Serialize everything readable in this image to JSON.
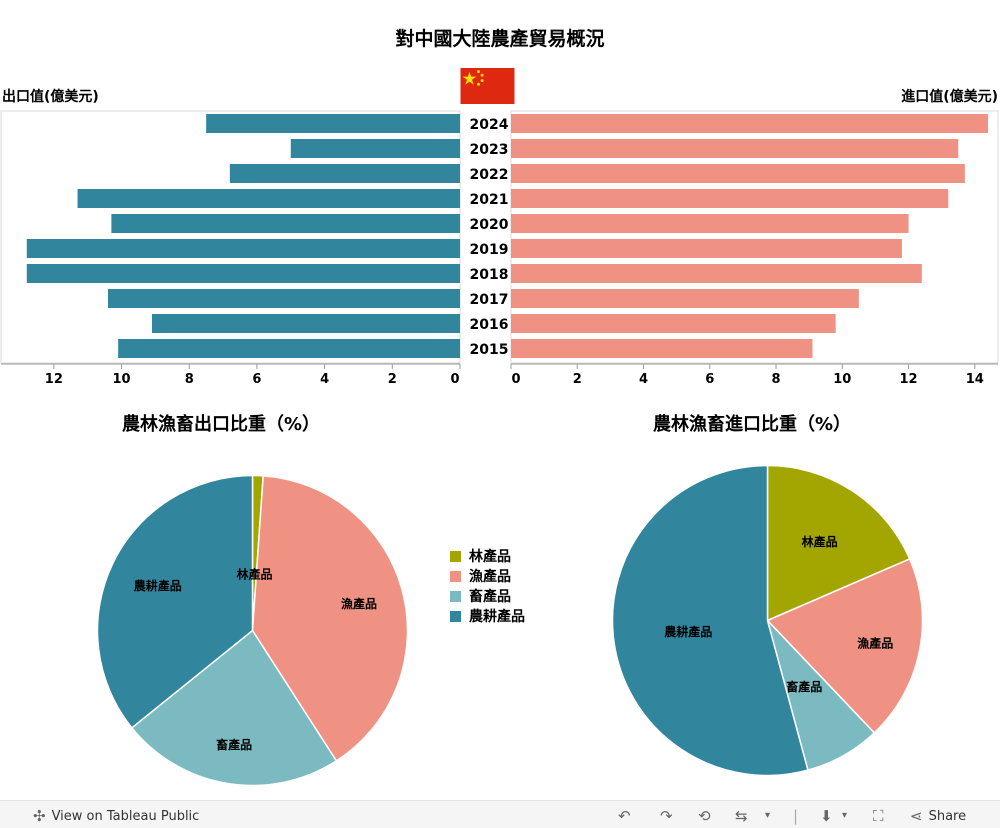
{
  "title": "對中國大陸農產貿易概況",
  "export_header": "出口值(億美元)",
  "import_header": "進口值(億美元)",
  "flag_icon": "china-flag",
  "colors": {
    "export": "#31859c",
    "import": "#ef9283",
    "forestry": "#a3a600",
    "fishery": "#ef9283",
    "livestock": "#7bbac0",
    "agriculture": "#31859c"
  },
  "chart_data": [
    {
      "type": "bar",
      "orientation": "horizontal",
      "categories": [
        "2024",
        "2023",
        "2022",
        "2021",
        "2020",
        "2019",
        "2018",
        "2017",
        "2016",
        "2015"
      ],
      "series": [
        {
          "name": "出口值(億美元)",
          "values": [
            7.5,
            5.0,
            6.8,
            11.3,
            10.3,
            12.8,
            12.8,
            10.4,
            9.1,
            10.1
          ]
        },
        {
          "name": "進口值(億美元)",
          "values": [
            14.4,
            13.5,
            13.7,
            13.2,
            12.0,
            11.8,
            12.4,
            10.5,
            9.8,
            9.1
          ]
        }
      ],
      "export_xlim": [
        0,
        13.0
      ],
      "import_xlim": [
        0,
        14.7
      ],
      "export_ticks": [
        12,
        10,
        8,
        6,
        4,
        2,
        0
      ],
      "import_ticks": [
        0,
        2,
        4,
        6,
        8,
        10,
        12,
        14
      ],
      "grid": false
    },
    {
      "type": "pie",
      "title": "農林漁畜出口比重（%）",
      "labels": [
        "林產品",
        "漁產品",
        "畜產品",
        "農耕產品"
      ],
      "values": [
        1.1,
        39.8,
        23.3,
        35.8
      ]
    },
    {
      "type": "pie",
      "title": "農林漁畜進口比重（%）",
      "labels": [
        "林產品",
        "漁產品",
        "畜產品",
        "農耕產品"
      ],
      "values": [
        18.5,
        19.4,
        7.9,
        54.2
      ]
    }
  ],
  "legend": [
    {
      "label": "林產品",
      "color": "#a3a600"
    },
    {
      "label": "漁產品",
      "color": "#ef9283"
    },
    {
      "label": "畜產品",
      "color": "#7bbac0"
    },
    {
      "label": "農耕產品",
      "color": "#31859c"
    }
  ],
  "footer": {
    "view_label": "View on Tableau Public",
    "share_label": "Share"
  }
}
